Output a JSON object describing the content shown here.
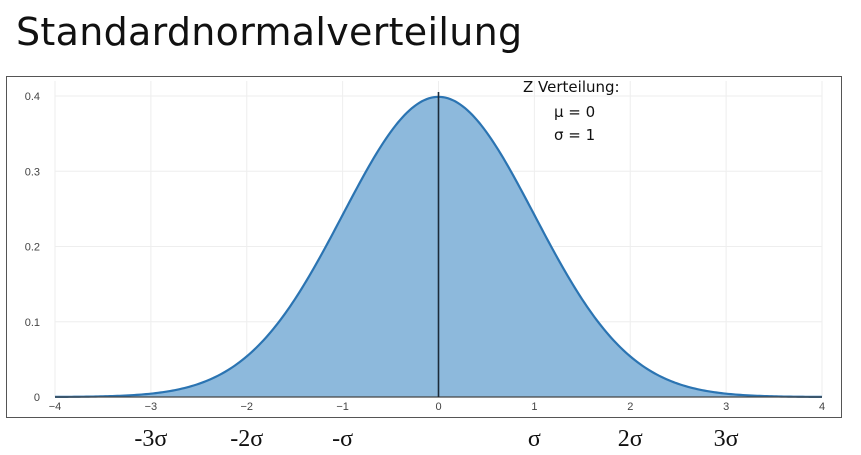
{
  "page": {
    "title": "Standardnormalverteilung"
  },
  "annotation": {
    "heading": "Z Verteilung:",
    "mu_line": "μ = 0",
    "sigma_line": "σ = 1"
  },
  "sigma_labels": [
    {
      "x": -3,
      "text": "-3σ"
    },
    {
      "x": -2,
      "text": "-2σ"
    },
    {
      "x": -1,
      "text": "-σ"
    },
    {
      "x": 1,
      "text": "σ"
    },
    {
      "x": 2,
      "text": "2σ"
    },
    {
      "x": 3,
      "text": "3σ"
    }
  ],
  "chart_data": {
    "type": "area",
    "title": "",
    "xlabel": "",
    "ylabel": "",
    "xlim": [
      -4,
      4
    ],
    "ylim": [
      0,
      0.42
    ],
    "x_ticks": [
      -4,
      -3,
      -2,
      -1,
      0,
      1,
      2,
      3,
      4
    ],
    "x_tick_labels": [
      "−4",
      "−3",
      "−2",
      "−1",
      "0",
      "1",
      "2",
      "3",
      "4"
    ],
    "y_ticks": [
      0,
      0.1,
      0.2,
      0.3,
      0.4
    ],
    "y_tick_labels": [
      "0",
      "0.1",
      "0.2",
      "0.3",
      "0.4"
    ],
    "grid": true,
    "vertical_line_x": 0,
    "series": [
      {
        "x": [
          -4,
          -3.5,
          -3,
          -2.5,
          -2,
          -1.5,
          -1,
          -0.5,
          0,
          0.5,
          1,
          1.5,
          2,
          2.5,
          3,
          3.5,
          4
        ],
        "y": [
          0.0001,
          0.0009,
          0.0044,
          0.0175,
          0.054,
          0.1295,
          0.242,
          0.3521,
          0.3989,
          0.3521,
          0.242,
          0.1295,
          0.054,
          0.0175,
          0.0044,
          0.0009,
          0.0001
        ]
      }
    ],
    "colors": {
      "fill": "#8db9dc",
      "line": "#2b74b2",
      "grid": "#eeeeee",
      "axis_text": "#444444",
      "center_line": "#1c2b3a"
    }
  }
}
